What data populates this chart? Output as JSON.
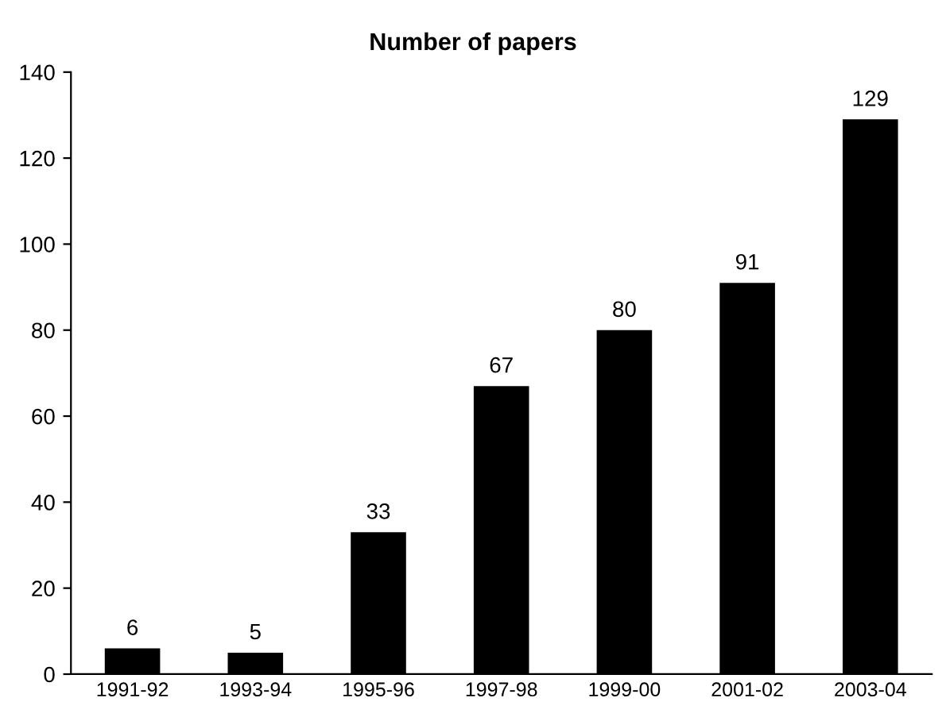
{
  "chart_data": {
    "type": "bar",
    "title": "Number of papers",
    "categories": [
      "1991-92",
      "1993-94",
      "1995-96",
      "1997-98",
      "1999-00",
      "2001-02",
      "2003-04"
    ],
    "values": [
      6,
      5,
      33,
      67,
      80,
      91,
      129
    ],
    "color": "#000000",
    "ylim": [
      0,
      140
    ],
    "yticks": [
      0,
      20,
      40,
      60,
      80,
      100,
      120,
      140
    ],
    "data_labels": true,
    "grid": false,
    "legend": false
  }
}
